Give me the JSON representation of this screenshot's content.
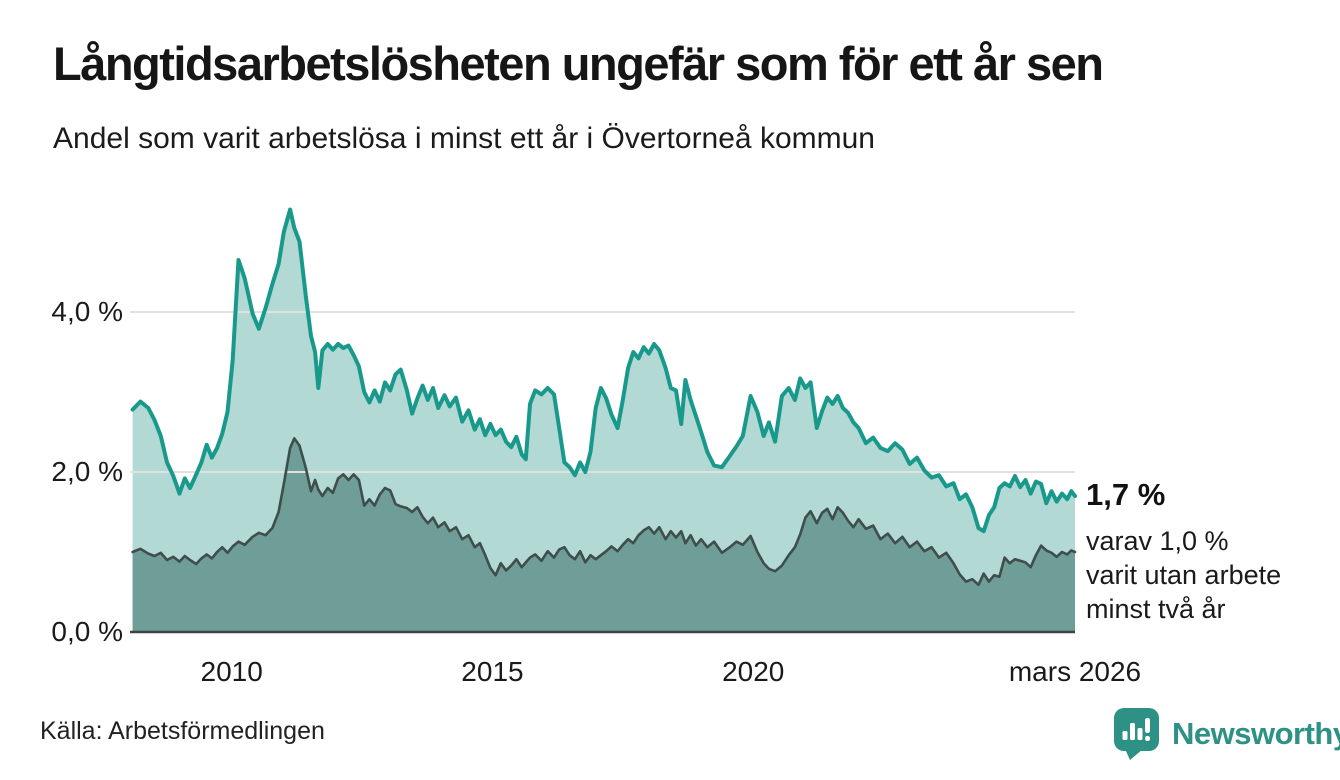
{
  "header": {
    "title": "Långtidsarbetslösheten ungefär som för ett år sen",
    "subtitle": "Andel som varit arbetslösa i minst ett år i Övertorneå kommun"
  },
  "chart_data": {
    "type": "area",
    "title": "Långtidsarbetslösheten ungefär som för ett år sen",
    "subtitle": "Andel som varit arbetslösa i minst ett år i Övertorneå kommun",
    "unit": "%",
    "grid": true,
    "grid_color": "#e1e1e1",
    "axis_color": "#3a4544",
    "x_domain": [
      2008.05,
      2026.17
    ],
    "ylim": [
      0,
      5.5
    ],
    "y_ticks": [
      {
        "value": 0,
        "label": "0,0 %"
      },
      {
        "value": 2,
        "label": "2,0 %"
      },
      {
        "value": 4,
        "label": "4,0 %"
      }
    ],
    "x_ticks": [
      {
        "value": 2010,
        "label": "2010"
      },
      {
        "value": 2015,
        "label": "2015"
      },
      {
        "value": 2020,
        "label": "2020"
      },
      {
        "value": 2026.17,
        "label": "mars 2026"
      }
    ],
    "x": [
      2008.1,
      2008.25,
      2008.4,
      2008.52,
      2008.64,
      2008.76,
      2008.88,
      2009.0,
      2009.1,
      2009.2,
      2009.32,
      2009.42,
      2009.52,
      2009.62,
      2009.72,
      2009.82,
      2009.92,
      2010.02,
      2010.13,
      2010.25,
      2010.4,
      2010.52,
      2010.65,
      2010.78,
      2010.9,
      2011.0,
      2011.12,
      2011.2,
      2011.3,
      2011.42,
      2011.52,
      2011.6,
      2011.66,
      2011.74,
      2011.84,
      2011.94,
      2012.04,
      2012.14,
      2012.24,
      2012.34,
      2012.44,
      2012.54,
      2012.64,
      2012.74,
      2012.84,
      2012.94,
      2013.04,
      2013.14,
      2013.24,
      2013.36,
      2013.46,
      2013.56,
      2013.66,
      2013.76,
      2013.86,
      2013.96,
      2014.08,
      2014.18,
      2014.3,
      2014.42,
      2014.54,
      2014.66,
      2014.76,
      2014.86,
      2014.96,
      2015.06,
      2015.16,
      2015.26,
      2015.36,
      2015.46,
      2015.56,
      2015.64,
      2015.72,
      2015.82,
      2015.94,
      2016.06,
      2016.18,
      2016.28,
      2016.38,
      2016.48,
      2016.58,
      2016.68,
      2016.78,
      2016.88,
      2016.98,
      2017.08,
      2017.18,
      2017.28,
      2017.4,
      2017.5,
      2017.6,
      2017.7,
      2017.8,
      2017.9,
      2018.0,
      2018.1,
      2018.2,
      2018.32,
      2018.42,
      2018.52,
      2018.62,
      2018.7,
      2018.8,
      2018.9,
      2019.0,
      2019.12,
      2019.25,
      2019.4,
      2019.55,
      2019.68,
      2019.8,
      2019.95,
      2020.08,
      2020.2,
      2020.3,
      2020.42,
      2020.55,
      2020.68,
      2020.8,
      2020.9,
      2021.0,
      2021.1,
      2021.22,
      2021.32,
      2021.42,
      2021.52,
      2021.62,
      2021.72,
      2021.82,
      2021.92,
      2022.02,
      2022.16,
      2022.3,
      2022.44,
      2022.58,
      2022.72,
      2022.86,
      2023.0,
      2023.14,
      2023.28,
      2023.42,
      2023.56,
      2023.7,
      2023.84,
      2023.96,
      2024.08,
      2024.2,
      2024.32,
      2024.42,
      2024.52,
      2024.62,
      2024.72,
      2024.82,
      2024.92,
      2025.02,
      2025.12,
      2025.22,
      2025.32,
      2025.42,
      2025.52,
      2025.62,
      2025.72,
      2025.82,
      2025.92,
      2026.02,
      2026.1,
      2026.17
    ],
    "series": [
      {
        "id": "arbetslosa-minst-ett-ar",
        "line_color": "#18998c",
        "fill_color": "#b2d9d3",
        "line_width": 4,
        "values": [
          2.78,
          2.88,
          2.8,
          2.65,
          2.45,
          2.12,
          1.95,
          1.73,
          1.92,
          1.8,
          1.97,
          2.12,
          2.34,
          2.18,
          2.3,
          2.48,
          2.75,
          3.4,
          4.65,
          4.42,
          3.98,
          3.79,
          4.05,
          4.35,
          4.6,
          5.0,
          5.28,
          5.05,
          4.88,
          4.2,
          3.7,
          3.5,
          3.05,
          3.52,
          3.6,
          3.53,
          3.6,
          3.55,
          3.58,
          3.46,
          3.32,
          3.0,
          2.87,
          3.02,
          2.88,
          3.12,
          3.02,
          3.22,
          3.28,
          3.02,
          2.73,
          2.92,
          3.08,
          2.9,
          3.05,
          2.8,
          2.96,
          2.82,
          2.93,
          2.63,
          2.77,
          2.53,
          2.66,
          2.46,
          2.6,
          2.46,
          2.53,
          2.38,
          2.31,
          2.44,
          2.22,
          2.16,
          2.85,
          3.02,
          2.97,
          3.05,
          2.97,
          2.55,
          2.12,
          2.06,
          1.96,
          2.12,
          2.0,
          2.25,
          2.8,
          3.05,
          2.92,
          2.72,
          2.55,
          2.9,
          3.3,
          3.5,
          3.42,
          3.56,
          3.48,
          3.6,
          3.52,
          3.3,
          3.05,
          3.02,
          2.6,
          3.15,
          2.9,
          2.7,
          2.5,
          2.25,
          2.08,
          2.06,
          2.2,
          2.32,
          2.45,
          2.95,
          2.75,
          2.45,
          2.62,
          2.38,
          2.95,
          3.05,
          2.9,
          3.17,
          3.05,
          3.12,
          2.55,
          2.76,
          2.93,
          2.85,
          2.95,
          2.8,
          2.74,
          2.62,
          2.55,
          2.36,
          2.43,
          2.3,
          2.26,
          2.36,
          2.28,
          2.1,
          2.18,
          2.02,
          1.93,
          1.96,
          1.82,
          1.86,
          1.66,
          1.72,
          1.56,
          1.3,
          1.26,
          1.46,
          1.56,
          1.8,
          1.86,
          1.82,
          1.95,
          1.81,
          1.9,
          1.73,
          1.88,
          1.85,
          1.61,
          1.76,
          1.63,
          1.73,
          1.66,
          1.76,
          1.7
        ]
      },
      {
        "id": "arbetslosa-minst-tva-ar",
        "line_color": "#3f4e4c",
        "fill_color": "#6f9d97",
        "line_width": 2.6,
        "values": [
          1.0,
          1.04,
          0.98,
          0.95,
          0.99,
          0.9,
          0.94,
          0.88,
          0.95,
          0.9,
          0.85,
          0.92,
          0.97,
          0.92,
          1.0,
          1.06,
          0.99,
          1.07,
          1.13,
          1.09,
          1.19,
          1.24,
          1.21,
          1.3,
          1.5,
          1.85,
          2.3,
          2.42,
          2.33,
          2.05,
          1.76,
          1.9,
          1.78,
          1.7,
          1.8,
          1.74,
          1.92,
          1.97,
          1.9,
          1.97,
          1.9,
          1.58,
          1.66,
          1.58,
          1.72,
          1.8,
          1.77,
          1.6,
          1.57,
          1.55,
          1.5,
          1.56,
          1.44,
          1.36,
          1.43,
          1.31,
          1.37,
          1.26,
          1.31,
          1.16,
          1.21,
          1.06,
          1.11,
          0.96,
          0.8,
          0.71,
          0.86,
          0.77,
          0.83,
          0.91,
          0.81,
          0.87,
          0.93,
          0.97,
          0.89,
          1.01,
          0.93,
          1.03,
          1.06,
          0.96,
          0.91,
          1.01,
          0.87,
          0.96,
          0.91,
          0.96,
          1.01,
          1.07,
          1.01,
          1.09,
          1.16,
          1.11,
          1.21,
          1.27,
          1.31,
          1.23,
          1.31,
          1.16,
          1.26,
          1.18,
          1.26,
          1.11,
          1.21,
          1.08,
          1.16,
          1.06,
          1.13,
          0.99,
          1.06,
          1.13,
          1.09,
          1.2,
          1.0,
          0.86,
          0.79,
          0.76,
          0.83,
          0.96,
          1.06,
          1.22,
          1.43,
          1.51,
          1.36,
          1.49,
          1.54,
          1.41,
          1.56,
          1.49,
          1.39,
          1.31,
          1.41,
          1.29,
          1.33,
          1.16,
          1.23,
          1.11,
          1.19,
          1.06,
          1.13,
          1.01,
          1.06,
          0.93,
          0.99,
          0.86,
          0.72,
          0.63,
          0.66,
          0.59,
          0.73,
          0.63,
          0.71,
          0.69,
          0.93,
          0.86,
          0.91,
          0.89,
          0.87,
          0.81,
          0.96,
          1.08,
          1.02,
          0.99,
          0.94,
          1.0,
          0.97,
          1.02,
          1.0
        ]
      }
    ],
    "annotation": {
      "value_label": "1,7 %",
      "detail_lines": [
        "varav 1,0 %",
        "varit utan arbete",
        "minst två år"
      ]
    }
  },
  "source": {
    "label": "Källa: Arbetsförmedlingen"
  },
  "branding": {
    "name": "Newsworthy",
    "color": "#2d9185"
  }
}
